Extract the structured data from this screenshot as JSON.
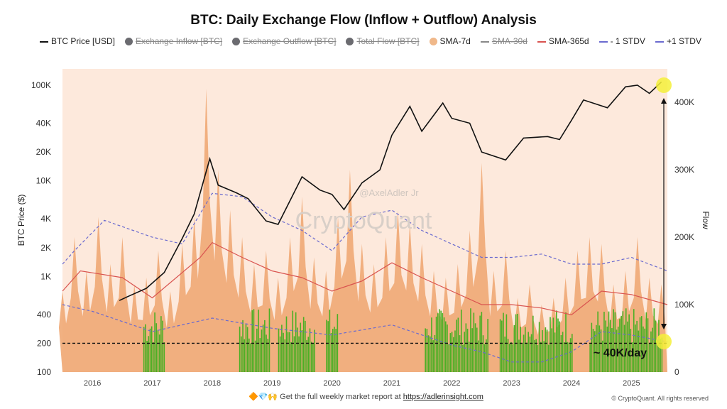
{
  "chart_data": {
    "type": "line",
    "title": "BTC: Daily Exchange Flow (Inflow + Outflow) Analysis",
    "ylabel": "BTC Price ($)",
    "y2label": "Flow",
    "yscale": "log",
    "ylim": [
      100,
      130000
    ],
    "y2lim": [
      0,
      440000
    ],
    "xlim": [
      2015.5,
      2025.6
    ],
    "ytick_labels": [
      "100",
      "200",
      "400",
      "1K",
      "2K",
      "4K",
      "10K",
      "20K",
      "40K",
      "100K"
    ],
    "ytick_values": [
      100,
      200,
      400,
      1000,
      2000,
      4000,
      10000,
      20000,
      40000,
      100000
    ],
    "y2tick_labels": [
      "0",
      "100K",
      "200K",
      "300K",
      "400K"
    ],
    "y2tick_values": [
      0,
      100000,
      200000,
      300000,
      400000
    ],
    "xtick_labels": [
      "2016",
      "2017",
      "2018",
      "2019",
      "2020",
      "2021",
      "2022",
      "2023",
      "2024",
      "2025"
    ],
    "legend": [
      {
        "label": "BTC Price [USD]",
        "type": "line",
        "color": "#111111",
        "active": true
      },
      {
        "label": "Exchange Inflow [BTC]",
        "type": "dot",
        "color": "#6b6b70",
        "active": false
      },
      {
        "label": "Exchange Outflow [BTC]",
        "type": "dot",
        "color": "#6b6b70",
        "active": false
      },
      {
        "label": "Total Flow [BTC]",
        "type": "dot",
        "color": "#6b6b70",
        "active": false
      },
      {
        "label": "SMA-7d",
        "type": "dot",
        "color": "#f0b88a",
        "active": true
      },
      {
        "label": "SMA-30d",
        "type": "line",
        "color": "#888888",
        "active": false
      },
      {
        "label": "SMA-365d",
        "type": "line",
        "color": "#d9534f",
        "active": true
      },
      {
        "label": "- 1 STDV",
        "type": "dash",
        "color": "#6a6acf",
        "active": true
      },
      {
        "label": "+1 STDV",
        "type": "dash",
        "color": "#6a6acf",
        "active": true
      }
    ],
    "legend_placement": "top",
    "series": [
      {
        "name": "BTC Price [USD]",
        "axis": "left",
        "color": "#111111",
        "x": [
          2016.45,
          2016.6,
          2016.9,
          2017.2,
          2017.5,
          2017.7,
          2017.96,
          2018.1,
          2018.4,
          2018.6,
          2018.9,
          2019.1,
          2019.5,
          2019.8,
          2020.0,
          2020.2,
          2020.5,
          2020.8,
          2021.0,
          2021.3,
          2021.5,
          2021.85,
          2022.0,
          2022.3,
          2022.5,
          2022.9,
          2023.2,
          2023.6,
          2023.8,
          2024.0,
          2024.2,
          2024.6,
          2024.9,
          2025.1,
          2025.3,
          2025.5
        ],
        "y": [
          560,
          620,
          750,
          1100,
          2500,
          4500,
          17000,
          9000,
          7500,
          6500,
          3800,
          3500,
          11000,
          8000,
          7200,
          5000,
          9500,
          13000,
          30000,
          60000,
          33000,
          65000,
          45000,
          40000,
          20000,
          16500,
          28000,
          29000,
          27000,
          43000,
          70000,
          58000,
          96000,
          100000,
          82000,
          108000
        ]
      },
      {
        "name": "SMA-7d",
        "axis": "right",
        "color": "#f0a874",
        "x_start": 2015.5,
        "x_step": 0.2,
        "y": [
          120000,
          200000,
          150000,
          230000,
          160000,
          200000,
          130000,
          140000,
          180000,
          120000,
          190000,
          230000,
          420000,
          300000,
          240000,
          200000,
          160000,
          180000,
          140000,
          200000,
          260000,
          170000,
          150000,
          230000,
          300000,
          190000,
          160000,
          200000,
          240000,
          220000,
          190000,
          150000,
          140000,
          160000,
          210000,
          310000,
          150000,
          180000,
          110000,
          130000,
          100000,
          110000,
          140000,
          180000,
          200000,
          190000,
          130000,
          150000,
          200000,
          140000,
          130000
        ]
      },
      {
        "name": "SMA-365d",
        "axis": "right",
        "color": "#d9534f",
        "x": [
          2015.5,
          2015.8,
          2016.5,
          2017.0,
          2017.8,
          2018.0,
          2018.5,
          2019.0,
          2019.5,
          2020.0,
          2020.5,
          2021.0,
          2021.5,
          2022.0,
          2022.5,
          2023.0,
          2023.5,
          2024.0,
          2024.5,
          2025.0,
          2025.6
        ],
        "y": [
          120000,
          150000,
          140000,
          110000,
          170000,
          192000,
          170000,
          150000,
          140000,
          120000,
          135000,
          162000,
          140000,
          120000,
          100000,
          100000,
          95000,
          85000,
          120000,
          115000,
          100000
        ]
      },
      {
        "name": "+1 STDV",
        "axis": "right",
        "color": "#6a6acf",
        "x": [
          2015.5,
          2015.7,
          2016.2,
          2017.0,
          2017.5,
          2018.0,
          2018.5,
          2019.0,
          2019.5,
          2020.0,
          2020.5,
          2021.0,
          2021.5,
          2022.0,
          2022.5,
          2023.0,
          2023.5,
          2024.0,
          2024.5,
          2025.0,
          2025.6
        ],
        "y": [
          160000,
          180000,
          225000,
          200000,
          190000,
          265000,
          260000,
          230000,
          210000,
          180000,
          230000,
          240000,
          210000,
          190000,
          170000,
          170000,
          175000,
          160000,
          160000,
          170000,
          150000
        ]
      },
      {
        "name": "- 1 STDV",
        "axis": "right",
        "color": "#6a6acf",
        "x": [
          2015.5,
          2016.0,
          2017.0,
          2018.0,
          2019.0,
          2020.0,
          2021.0,
          2022.0,
          2022.5,
          2023.0,
          2023.5,
          2024.0,
          2024.5,
          2025.0,
          2025.6
        ],
        "y": [
          100000,
          90000,
          60000,
          80000,
          65000,
          55000,
          70000,
          40000,
          30000,
          15000,
          15000,
          30000,
          60000,
          55000,
          45000
        ]
      }
    ],
    "low_flow_periods": {
      "color": "#4caf25",
      "ranges": [
        [
          2016.85,
          2017.2
        ],
        [
          2018.45,
          2018.95
        ],
        [
          2019.1,
          2019.7
        ],
        [
          2019.9,
          2020.1
        ],
        [
          2021.55,
          2022.6
        ],
        [
          2022.8,
          2024.0
        ],
        [
          2024.3,
          2025.5
        ]
      ]
    },
    "reference_line": {
      "price": 200,
      "style": "dashed",
      "color": "#111111"
    },
    "annotations": {
      "label": "~ 40K/day",
      "highlight_color": "#f5f03a"
    },
    "watermark": {
      "brand": "CryptoQuant",
      "handle": "@AxelAdler Jr"
    },
    "grid": false,
    "background": "#fde9dc"
  },
  "footer": {
    "emoji": "🔶💎🙌",
    "text": "Get the full weekly market report at ",
    "link": "https://adlerinsight.com",
    "copyright": "© CryptoQuant. All rights reserved"
  }
}
